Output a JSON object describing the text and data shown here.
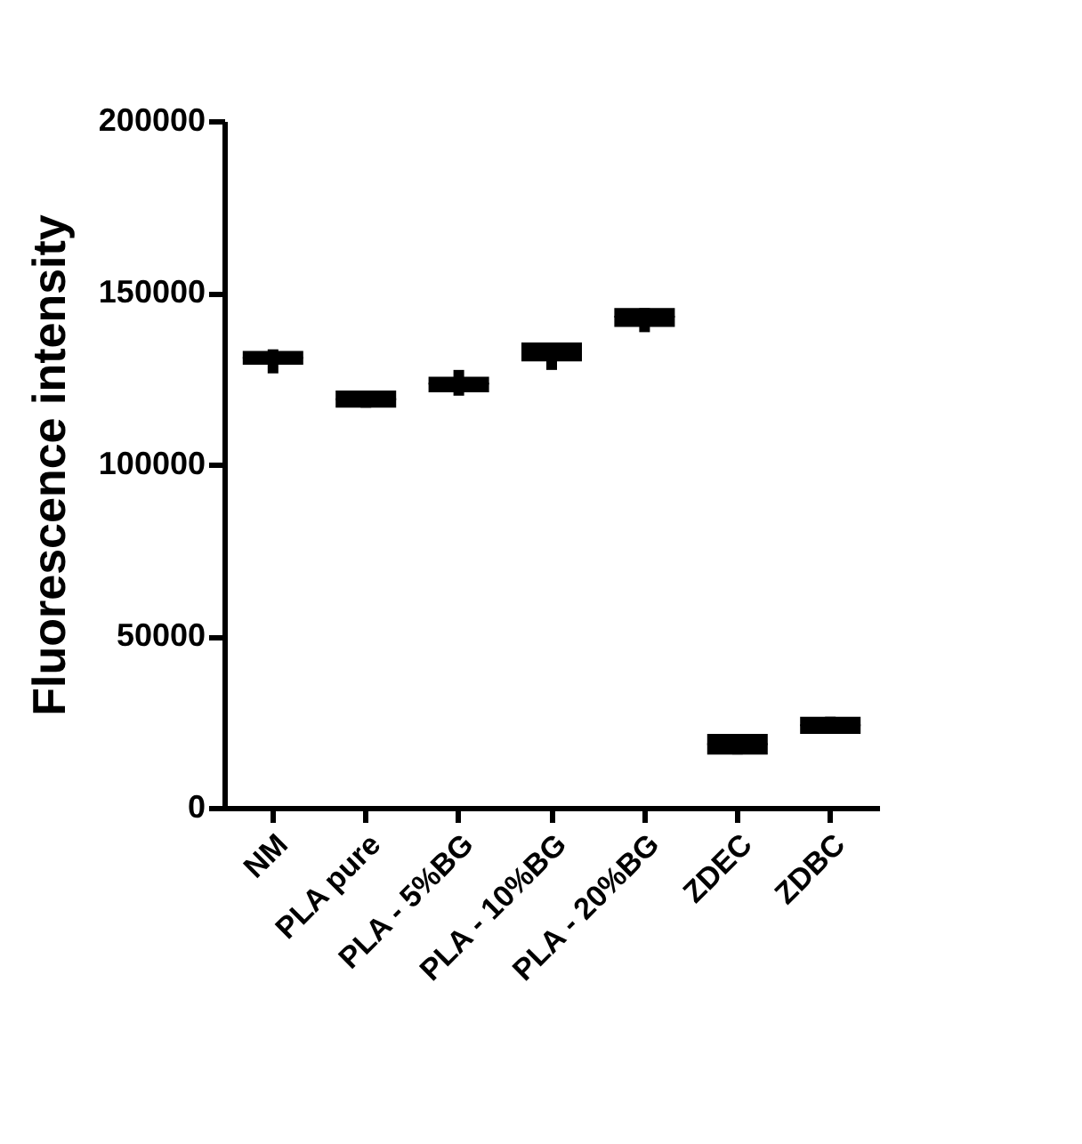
{
  "chart_data": {
    "type": "box",
    "ylabel": "Fluorescence intensity",
    "categories": [
      "NM",
      "PLA pure",
      "PLA - 5%BG",
      "PLA - 10%BG",
      "PLA - 20%BG",
      "ZDEC",
      "ZDBC"
    ],
    "boxes": [
      {
        "low": 126500,
        "q1": 129000,
        "median": 131000,
        "q3": 133000,
        "high": 133500
      },
      {
        "low": 116500,
        "q1": 116500,
        "median": 119000,
        "q3": 121500,
        "high": 121500
      },
      {
        "low": 120000,
        "q1": 121000,
        "median": 123500,
        "q3": 125500,
        "high": 127500
      },
      {
        "low": 127500,
        "q1": 130000,
        "median": 133000,
        "q3": 135500,
        "high": 135500
      },
      {
        "low": 138500,
        "q1": 140000,
        "median": 143000,
        "q3": 145500,
        "high": 145500
      },
      {
        "low": 15500,
        "q1": 15500,
        "median": 18500,
        "q3": 21500,
        "high": 21500
      },
      {
        "low": 21500,
        "q1": 21500,
        "median": 24000,
        "q3": 26500,
        "high": 26500
      }
    ],
    "color": "#000000",
    "ylim": [
      0,
      200000
    ],
    "yticks": [
      0,
      50000,
      100000,
      150000,
      200000
    ],
    "grid": false
  }
}
